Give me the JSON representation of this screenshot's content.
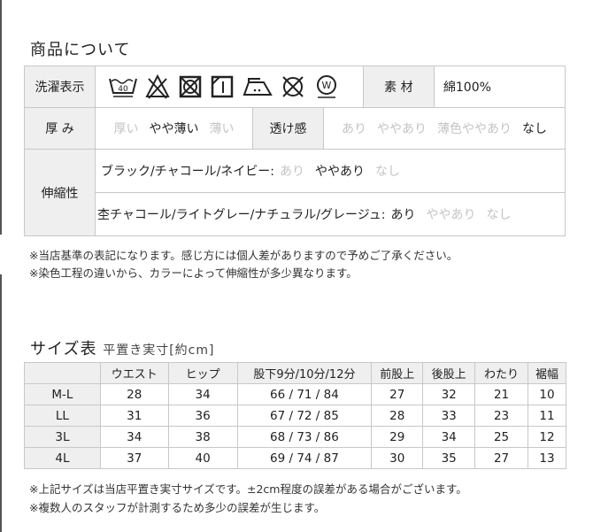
{
  "product_section": {
    "title": "商品について",
    "laundry_label": "洗濯表示",
    "laundry_icons": [
      "wash-40-icon",
      "no-bleach-icon",
      "no-tumble-dry-icon",
      "line-dry-shade-icon",
      "iron-low-icon",
      "no-dry-clean-icon",
      "wet-clean-icon"
    ],
    "wash_temp": "40",
    "material_label": "素 材",
    "material_value": "綿100%",
    "thickness_label": "厚 み",
    "thickness_options": [
      {
        "text": "厚い",
        "selected": false
      },
      {
        "text": "やや薄い",
        "selected": true
      },
      {
        "text": "薄い",
        "selected": false
      }
    ],
    "sheer_label": "透け感",
    "sheer_options": [
      {
        "text": "あり",
        "selected": false
      },
      {
        "text": "ややあり",
        "selected": false
      },
      {
        "text": "薄色ややあり",
        "selected": false
      },
      {
        "text": "なし",
        "selected": true
      }
    ],
    "stretch_label": "伸縮性",
    "stretch_rows": [
      {
        "colors": "ブラック/チャコール/ネイビー:",
        "options": [
          {
            "text": "あり",
            "selected": false
          },
          {
            "text": "ややあり",
            "selected": true
          },
          {
            "text": "なし",
            "selected": false
          }
        ]
      },
      {
        "colors": "杢チャコール/ライトグレー/ナチュラル/グレージュ:",
        "options": [
          {
            "text": "あり",
            "selected": true
          },
          {
            "text": "ややあり",
            "selected": false
          },
          {
            "text": "なし",
            "selected": false
          }
        ]
      }
    ],
    "notes": [
      "※当店基準の表記になります。感じ方には個人差がありますので予めご了承ください。",
      "※染色工程の違いから、カラーによって伸縮性が多少異なります。"
    ]
  },
  "size_section": {
    "title": "サイズ表",
    "subtitle": "平置き実寸[約cm]",
    "headers": [
      "",
      "ウエスト",
      "ヒップ",
      "股下9分/10分/12分",
      "前股上",
      "後股上",
      "わたり",
      "裾幅"
    ],
    "rows": [
      [
        "M-L",
        "28",
        "34",
        "66 / 71 / 84",
        "27",
        "32",
        "21",
        "10"
      ],
      [
        "LL",
        "31",
        "36",
        "67 / 72 / 85",
        "28",
        "33",
        "23",
        "11"
      ],
      [
        "3L",
        "34",
        "38",
        "68 / 73 / 86",
        "29",
        "34",
        "25",
        "12"
      ],
      [
        "4L",
        "37",
        "40",
        "69 / 74 / 87",
        "30",
        "35",
        "27",
        "13"
      ]
    ],
    "notes": [
      "※上記サイズは当店平置き実寸サイズです。±2cm程度の誤差がある場合がございます。",
      "※複数人のスタッフが計測するため多少の誤差が生じます。"
    ]
  }
}
